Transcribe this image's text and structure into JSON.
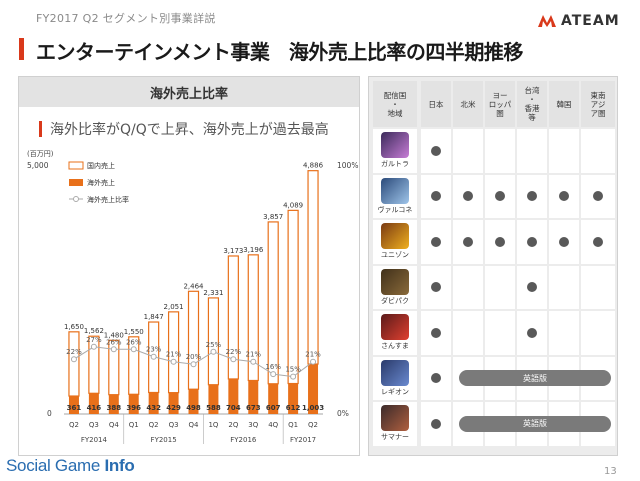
{
  "header": {
    "eyebrow": "FY2017 Q2 セグメント別事業詳説",
    "title": "エンターテインメント事業　海外売上比率の四半期推移",
    "logo_text": "ATEAM"
  },
  "left_panel": {
    "header": "海外売上比率",
    "subtitle": "海外比率がQ/Qで上昇、海外売上が過去最高"
  },
  "chart_data": {
    "type": "bar",
    "y_unit_label": "(百万円)",
    "ylim": [
      0,
      5000
    ],
    "y_ticks": [
      "5,000",
      "0"
    ],
    "y2_ticks": [
      "100%",
      "0%"
    ],
    "legend": [
      "国内売上",
      "海外売上",
      "海外売上比率"
    ],
    "quarters": [
      "Q2",
      "Q3",
      "Q4",
      "Q1",
      "Q2",
      "Q3",
      "Q4",
      "1Q",
      "2Q",
      "3Q",
      "4Q",
      "Q1",
      "Q2"
    ],
    "fiscal_years": [
      {
        "label": "FY2014",
        "span": 3
      },
      {
        "label": "FY2015",
        "span": 4
      },
      {
        "label": "FY2016",
        "span": 4
      },
      {
        "label": "FY2017",
        "span": 2
      }
    ],
    "totals": [
      1650,
      1562,
      1480,
      1550,
      1847,
      2051,
      2464,
      2331,
      3173,
      3196,
      3857,
      4089,
      4886
    ],
    "totals_labels": [
      "1,650",
      "1,562",
      "1,480",
      "1,550",
      "1,847",
      "2,051",
      "2,464",
      "2,331",
      "3,173",
      "3,196",
      "3,857",
      "4,089",
      "4,886"
    ],
    "overseas": [
      361,
      416,
      388,
      396,
      432,
      429,
      498,
      588,
      704,
      673,
      607,
      612,
      1003
    ],
    "overseas_labels": [
      "361",
      "416",
      "388",
      "396",
      "432",
      "429",
      "498",
      "588",
      "704",
      "673",
      "607",
      "612",
      "1,003"
    ],
    "ratio_pct": [
      22,
      27,
      26,
      26,
      23,
      21,
      20,
      25,
      22,
      21,
      16,
      15,
      21
    ],
    "ratio_labels": [
      "22%",
      "27%",
      "26%",
      "26%",
      "23%",
      "21%",
      "20%",
      "25%",
      "22%",
      "21%",
      "16%",
      "15%",
      "21%"
    ],
    "colors": {
      "domestic_border": "#e8701a",
      "overseas": "#e8701a",
      "ratio": "#aaaaaa"
    }
  },
  "table": {
    "header": [
      "配信国\n・\n地域",
      "日本",
      "北米",
      "ヨー\nロッパ\n圏",
      "台湾\n・\n香港\n等",
      "韓国",
      "東南\nアジ\nア圏"
    ],
    "rows": [
      {
        "name": "ガルトラ",
        "icon": "galtra-app-icon",
        "cells": [
          1,
          0,
          0,
          0,
          0,
          0
        ]
      },
      {
        "name": "ヴァルコネ",
        "icon": "valcone-app-icon",
        "cells": [
          1,
          1,
          1,
          1,
          1,
          1
        ]
      },
      {
        "name": "ユニゾン",
        "icon": "unison-app-icon",
        "cells": [
          1,
          1,
          1,
          1,
          1,
          1
        ]
      },
      {
        "name": "ダビパク",
        "icon": "dabipaku-app-icon",
        "cells": [
          1,
          0,
          0,
          1,
          0,
          0
        ]
      },
      {
        "name": "さんすま",
        "icon": "sansuma-app-icon",
        "cells": [
          1,
          0,
          0,
          1,
          0,
          0
        ]
      },
      {
        "name": "レギオン",
        "icon": "legion-app-icon",
        "cells": [
          1,
          0,
          0,
          0,
          0,
          0
        ],
        "pill": "英語版"
      },
      {
        "name": "サマナー",
        "icon": "summoner-app-icon",
        "cells": [
          1,
          0,
          0,
          0,
          0,
          0
        ],
        "pill": "英語版"
      }
    ]
  },
  "footer": {
    "brand_main": "Social Game",
    "brand_bold": "Info",
    "page_number": "13"
  }
}
